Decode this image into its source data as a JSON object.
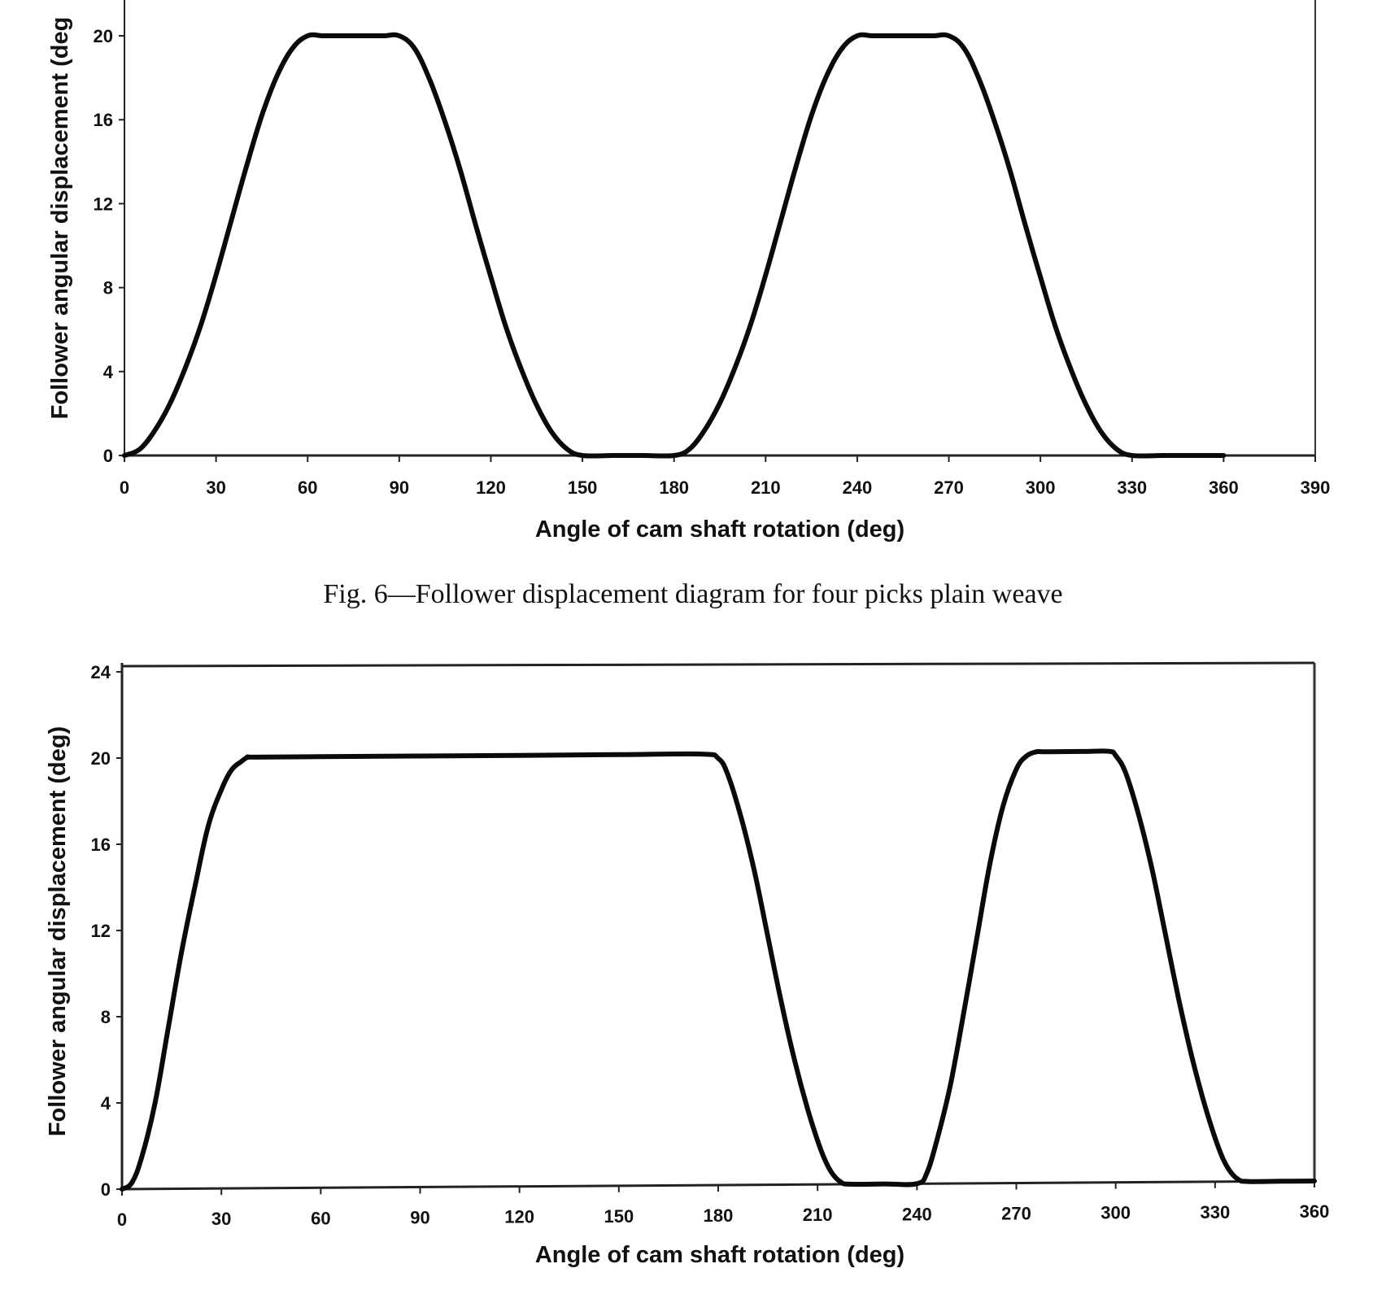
{
  "caption": "Fig. 6—Follower displacement diagram for four picks plain weave",
  "chart_data": [
    {
      "type": "line",
      "title": "",
      "xlabel": "Angle of cam shaft rotation (deg)",
      "ylabel": "Follower angular displacement (deg)",
      "xlim": [
        0,
        390
      ],
      "ylim": [
        0,
        24
      ],
      "xticks": [
        0,
        30,
        60,
        90,
        120,
        150,
        180,
        210,
        240,
        270,
        300,
        330,
        360,
        390
      ],
      "yticks": [
        0,
        4,
        8,
        12,
        16,
        20
      ],
      "grid": false,
      "legend": null,
      "note": "Top portion of y-axis (24 tick and title end) cropped in image",
      "series": [
        {
          "name": "Follower displacement",
          "x": [
            0,
            5,
            10,
            15,
            20,
            25,
            30,
            35,
            40,
            45,
            50,
            55,
            60,
            65,
            70,
            75,
            80,
            85,
            90,
            95,
            100,
            105,
            110,
            115,
            120,
            125,
            130,
            135,
            140,
            145,
            150,
            160,
            170,
            180,
            185,
            190,
            195,
            200,
            205,
            210,
            215,
            220,
            225,
            230,
            235,
            240,
            245,
            250,
            255,
            260,
            265,
            270,
            275,
            280,
            285,
            290,
            295,
            300,
            305,
            310,
            315,
            320,
            325,
            330,
            340,
            350,
            360
          ],
          "y": [
            0,
            0.3,
            1.2,
            2.5,
            4.2,
            6.2,
            8.6,
            11.2,
            13.8,
            16.2,
            18.1,
            19.4,
            20,
            20,
            20,
            20,
            20,
            20,
            20,
            19.4,
            17.9,
            15.9,
            13.6,
            11.0,
            8.5,
            6.1,
            4.1,
            2.4,
            1.1,
            0.3,
            0,
            0,
            0,
            0,
            0.3,
            1.2,
            2.5,
            4.2,
            6.2,
            8.6,
            11.2,
            13.8,
            16.2,
            18.1,
            19.4,
            20,
            20,
            20,
            20,
            20,
            20,
            20,
            19.4,
            17.9,
            15.9,
            13.6,
            11.0,
            8.5,
            6.1,
            4.1,
            2.4,
            1.1,
            0.3,
            0,
            0,
            0,
            0
          ]
        }
      ]
    },
    {
      "type": "line",
      "title": "",
      "xlabel": "Angle of cam shaft rotation (deg)",
      "ylabel": "Follower angular displacement (deg)",
      "xlim": [
        0,
        360
      ],
      "ylim": [
        0,
        24
      ],
      "xticks": [
        0,
        30,
        60,
        90,
        120,
        150,
        180,
        210,
        240,
        270,
        300,
        330,
        360
      ],
      "yticks": [
        0,
        4,
        8,
        12,
        16,
        20,
        24
      ],
      "grid": false,
      "legend": null,
      "series": [
        {
          "name": "Follower displacement",
          "x": [
            0,
            3,
            6,
            10,
            14,
            18,
            22,
            26,
            30,
            33,
            36,
            38,
            40,
            60,
            90,
            120,
            150,
            175,
            180,
            183,
            187,
            191,
            195,
            199,
            203,
            207,
            211,
            214,
            217,
            220,
            230,
            240,
            243,
            246,
            250,
            254,
            258,
            262,
            266,
            270,
            273,
            276,
            278,
            280,
            290,
            298,
            300,
            303,
            307,
            311,
            315,
            319,
            323,
            327,
            331,
            334,
            337,
            340,
            350,
            360
          ],
          "y": [
            0,
            0.3,
            1.5,
            4.0,
            7.5,
            11.0,
            14.0,
            16.8,
            18.5,
            19.4,
            19.8,
            20,
            20,
            20,
            20,
            20,
            20,
            20,
            19.8,
            19.0,
            17.0,
            14.5,
            11.5,
            8.5,
            5.8,
            3.5,
            1.6,
            0.6,
            0.1,
            0,
            0,
            0,
            0.5,
            2.0,
            4.5,
            7.8,
            11.3,
            14.8,
            17.5,
            19.2,
            19.8,
            20,
            20,
            20,
            20,
            20,
            19.8,
            19.0,
            17.0,
            14.5,
            11.5,
            8.5,
            5.8,
            3.5,
            1.6,
            0.6,
            0.1,
            0,
            0,
            0
          ]
        }
      ]
    }
  ],
  "top_chart": {
    "xlabel": "Angle of cam shaft rotation (deg)",
    "ylabel": "Follower angular displacement (deg",
    "xtick_labels": [
      "0",
      "30",
      "60",
      "90",
      "120",
      "150",
      "180",
      "210",
      "240",
      "270",
      "300",
      "330",
      "360",
      "390"
    ],
    "ytick_labels": [
      "0",
      "4",
      "8",
      "12",
      "16",
      "20"
    ]
  },
  "bottom_chart": {
    "xlabel": "Angle of cam shaft rotation (deg)",
    "ylabel": "Follower angular displacement (deg)",
    "xtick_labels": [
      "0",
      "30",
      "60",
      "90",
      "120",
      "150",
      "180",
      "210",
      "240",
      "270",
      "300",
      "330",
      "360"
    ],
    "ytick_labels": [
      "0",
      "4",
      "8",
      "12",
      "16",
      "20",
      "24"
    ]
  },
  "colors": {
    "line": "#0a0a0a",
    "axis": "#222222",
    "background": "#ffffff"
  }
}
